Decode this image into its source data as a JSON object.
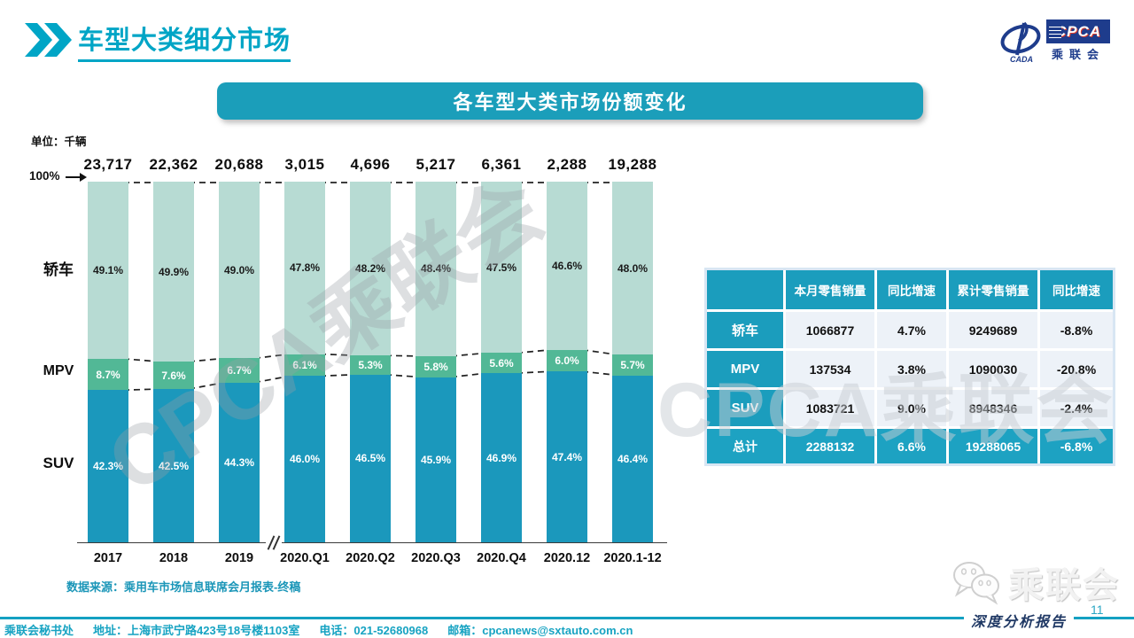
{
  "slide": {
    "title": "车型大类细分市场",
    "page_number": "11",
    "report_label": "深度分析报告",
    "watermark": "CPCA乘联会"
  },
  "logo": {
    "acronym": "CPCA",
    "cn": "乘联会",
    "sub": "CADA"
  },
  "banner": {
    "text": "各车型大类市场份额变化"
  },
  "chart_data": {
    "type": "bar",
    "subtype": "stacked-100",
    "title": "各车型大类市场份额变化",
    "unit_label": "单位：千辆",
    "y_top_label": "100%",
    "ylim": [
      0,
      100
    ],
    "grid": false,
    "legend_position": "left-of-bars",
    "categories": [
      "2017",
      "2018",
      "2019",
      "2020.Q1",
      "2020.Q2",
      "2020.Q3",
      "2020.Q4",
      "2020.12",
      "2020.1-12"
    ],
    "totals": [
      "23,717",
      "22,362",
      "20,688",
      "3,015",
      "4,696",
      "5,217",
      "6,361",
      "2,288",
      "19,288"
    ],
    "axis_break_between": [
      "2019",
      "2020.Q1"
    ],
    "series": [
      {
        "name": "轿车",
        "position": "top",
        "color": "#b7dbd3",
        "text_color": "#1a1a1a",
        "values": [
          49.1,
          49.9,
          49.0,
          47.8,
          48.2,
          48.4,
          47.5,
          46.6,
          48.0
        ]
      },
      {
        "name": "MPV",
        "position": "middle",
        "color": "#52b896",
        "text_color": "#ffffff",
        "values": [
          8.7,
          7.6,
          6.7,
          6.1,
          5.3,
          5.8,
          5.6,
          6.0,
          5.7
        ]
      },
      {
        "name": "SUV",
        "position": "bottom",
        "color": "#1b98bc",
        "text_color": "#ffffff",
        "values": [
          42.3,
          42.5,
          44.3,
          46.0,
          46.5,
          45.9,
          46.9,
          47.4,
          46.4
        ]
      }
    ],
    "source": "数据来源：乘用车市场信息联席会月报表-终稿"
  },
  "table": {
    "headers": [
      "",
      "本月零售销量",
      "同比增速",
      "累计零售销量",
      "同比增速"
    ],
    "rows": [
      {
        "label": "轿车",
        "values": [
          "1066877",
          "4.7%",
          "9249689",
          "-8.8%"
        ],
        "is_total": false
      },
      {
        "label": "MPV",
        "values": [
          "137534",
          "3.8%",
          "1090030",
          "-20.8%"
        ],
        "is_total": false
      },
      {
        "label": "SUV",
        "values": [
          "1083721",
          "9.0%",
          "8948346",
          "-2.4%"
        ],
        "is_total": false
      },
      {
        "label": "总计",
        "values": [
          "2288132",
          "6.6%",
          "19288065",
          "-6.8%"
        ],
        "is_total": true
      }
    ]
  },
  "footer": {
    "org": "乘联会秘书处",
    "address": "地址：上海市武宁路423号18号楼1103室",
    "phone": "电话：021-52680968",
    "email": "邮箱：cpcanews@sxtauto.com.cn"
  },
  "wechat": {
    "label": "乘联会"
  }
}
